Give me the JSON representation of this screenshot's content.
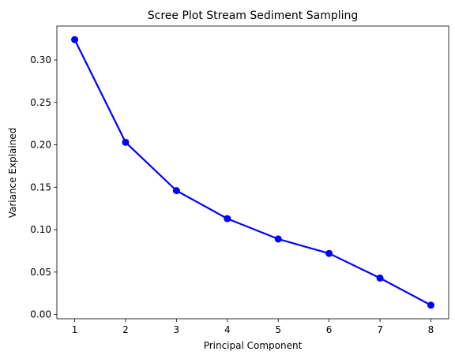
{
  "chart_data": {
    "type": "line",
    "title": "Scree Plot Stream Sediment Sampling",
    "xlabel": "Principal Component",
    "ylabel": "Variance Explained",
    "x": [
      1,
      2,
      3,
      4,
      5,
      6,
      7,
      8
    ],
    "series": [
      {
        "values": [
          0.324,
          0.203,
          0.146,
          0.113,
          0.089,
          0.072,
          0.043,
          0.011
        ]
      }
    ],
    "xlim": [
      0.65,
      8.35
    ],
    "ylim": [
      -0.005,
      0.34
    ],
    "xticks": [
      "1",
      "2",
      "3",
      "4",
      "5",
      "6",
      "7",
      "8"
    ],
    "yticks": [
      "0.00",
      "0.05",
      "0.10",
      "0.15",
      "0.20",
      "0.25",
      "0.30"
    ],
    "ytick_values": [
      0,
      0.05,
      0.1,
      0.15,
      0.2,
      0.25,
      0.3
    ],
    "grid": false,
    "line_color": "#0000ff",
    "marker": "circle"
  }
}
